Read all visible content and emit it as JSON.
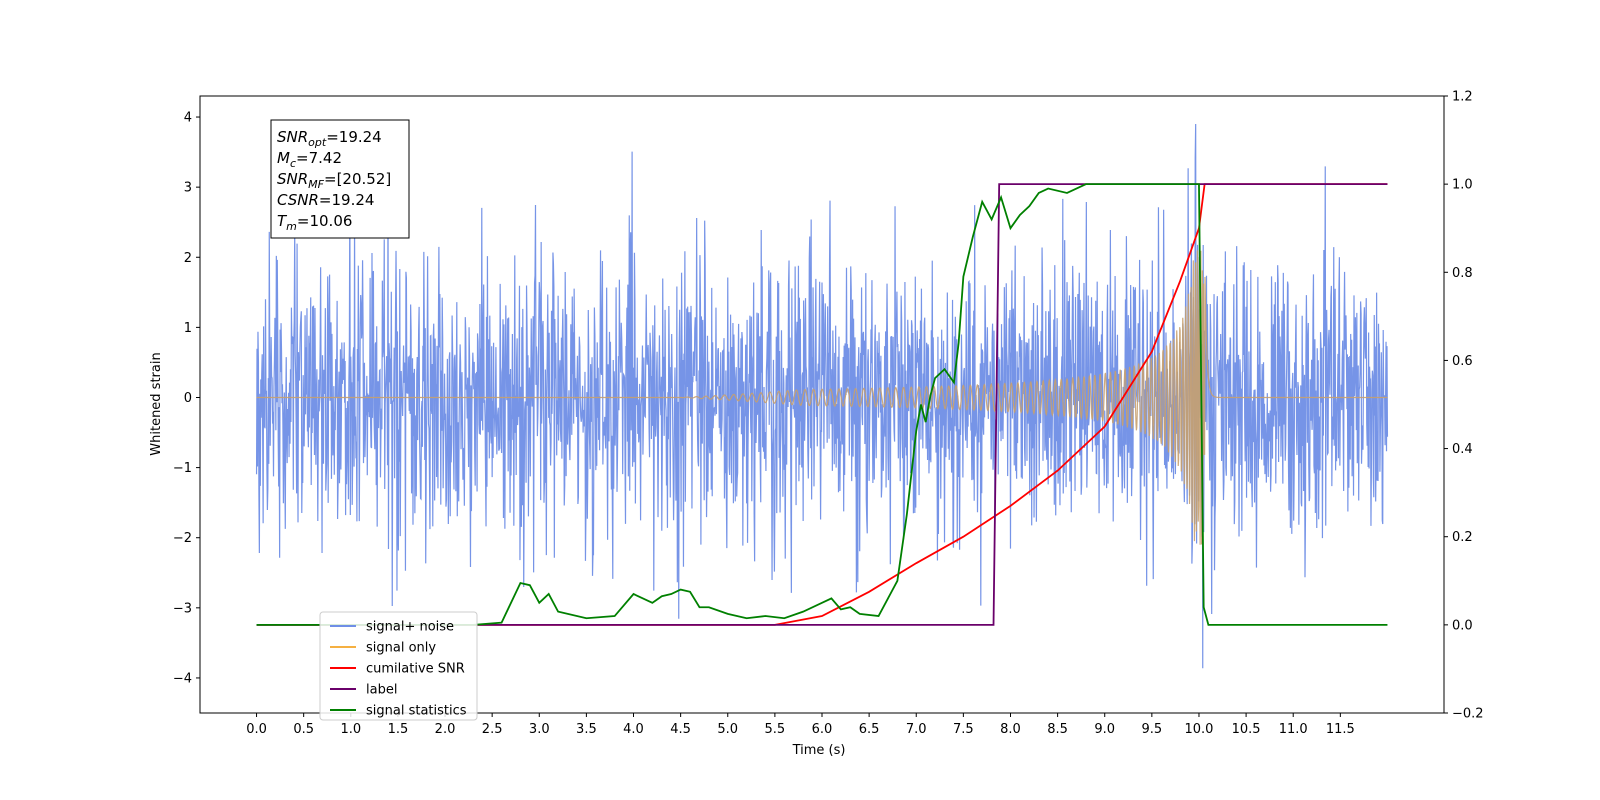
{
  "chart_data": {
    "type": "line",
    "xlabel": "Time (s)",
    "ylabel_left": "Whitened strain",
    "ylabel_right": "",
    "xlim": [
      -0.6,
      12.6
    ],
    "ylim_left": [
      -4.5,
      4.3
    ],
    "ylim_right": [
      -0.2,
      1.2
    ],
    "x_ticks": [
      "0.0",
      "0.5",
      "1.0",
      "1.5",
      "2.0",
      "2.5",
      "3.0",
      "3.5",
      "4.0",
      "4.5",
      "5.0",
      "5.5",
      "6.0",
      "6.5",
      "7.0",
      "7.5",
      "8.0",
      "8.5",
      "9.0",
      "9.5",
      "10.0",
      "10.5",
      "11.0",
      "11.5"
    ],
    "y_ticks_left": [
      "−4",
      "−3",
      "−2",
      "−1",
      "0",
      "1",
      "2",
      "3",
      "4"
    ],
    "y_ticks_right": [
      "−0.2",
      "0.0",
      "0.2",
      "0.4",
      "0.6",
      "0.8",
      "1.0",
      "1.2"
    ],
    "grid": false,
    "legend_position": "lower-left",
    "annotation": {
      "lines": [
        {
          "var": "SNR",
          "sub": "opt",
          "rest": "=19.24"
        },
        {
          "var": "M",
          "sub": "c",
          "rest": "=7.42"
        },
        {
          "var": "SNR",
          "sub": "MF",
          "rest": "=[20.52]"
        },
        {
          "var": "CSNR",
          "sub": "",
          "rest": "=19.24"
        },
        {
          "var": "T",
          "sub": "m",
          "rest": "=10.06"
        }
      ]
    },
    "series": [
      {
        "name": "signal+ noise",
        "axis": "left",
        "color": "#6f8ee6",
        "kind": "noise",
        "x_range": [
          0.0,
          12.0
        ],
        "std": 1.0,
        "peak_range": [
          -4.1,
          3.9
        ]
      },
      {
        "name": "signal only",
        "axis": "left",
        "color": "#f5b041",
        "kind": "chirp",
        "x_range": [
          0.0,
          12.0
        ],
        "merger_time": 10.06,
        "max_amplitude": 2.1
      },
      {
        "name": "cumilative SNR",
        "axis": "right",
        "color": "#ff0000",
        "kind": "line",
        "x": [
          0.0,
          5.5,
          6.0,
          6.5,
          7.0,
          7.5,
          8.0,
          8.5,
          9.0,
          9.5,
          9.8,
          10.0,
          10.06,
          12.0
        ],
        "y": [
          0.0,
          0.0,
          0.02,
          0.075,
          0.14,
          0.2,
          0.27,
          0.35,
          0.45,
          0.62,
          0.78,
          0.9,
          1.0,
          1.0
        ]
      },
      {
        "name": "label",
        "axis": "right",
        "color": "#6a006a",
        "kind": "line",
        "x": [
          0.0,
          7.82,
          7.88,
          12.0
        ],
        "y": [
          0.0,
          0.0,
          1.0,
          1.0
        ]
      },
      {
        "name": "signal statistics",
        "axis": "right",
        "color": "#008000",
        "kind": "line",
        "x": [
          0.0,
          2.3,
          2.6,
          2.8,
          2.9,
          3.0,
          3.1,
          3.2,
          3.5,
          3.8,
          4.0,
          4.1,
          4.2,
          4.3,
          4.4,
          4.5,
          4.6,
          4.7,
          4.8,
          5.0,
          5.2,
          5.4,
          5.6,
          5.8,
          6.0,
          6.1,
          6.2,
          6.3,
          6.4,
          6.6,
          6.7,
          6.8,
          6.9,
          7.0,
          7.05,
          7.1,
          7.15,
          7.2,
          7.3,
          7.4,
          7.45,
          7.5,
          7.6,
          7.7,
          7.8,
          7.9,
          8.0,
          8.1,
          8.2,
          8.3,
          8.4,
          8.6,
          8.8,
          9.0,
          10.0,
          10.05,
          10.1,
          12.0
        ],
        "y": [
          0.0,
          0.0,
          0.005,
          0.095,
          0.09,
          0.05,
          0.07,
          0.03,
          0.015,
          0.02,
          0.07,
          0.06,
          0.05,
          0.065,
          0.07,
          0.08,
          0.075,
          0.04,
          0.04,
          0.025,
          0.015,
          0.02,
          0.015,
          0.03,
          0.05,
          0.06,
          0.035,
          0.04,
          0.025,
          0.02,
          0.06,
          0.1,
          0.25,
          0.44,
          0.5,
          0.46,
          0.52,
          0.56,
          0.58,
          0.55,
          0.64,
          0.79,
          0.88,
          0.96,
          0.92,
          0.97,
          0.9,
          0.93,
          0.95,
          0.98,
          0.99,
          0.98,
          1.0,
          1.0,
          1.0,
          0.04,
          0.0,
          0.0
        ]
      }
    ]
  }
}
